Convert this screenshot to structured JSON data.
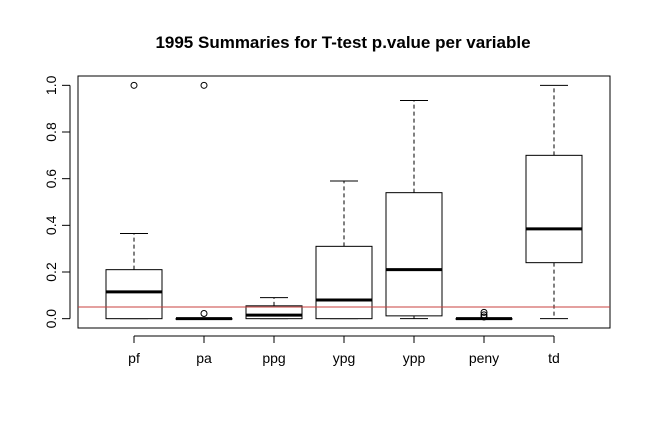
{
  "chart_data": {
    "type": "boxplot",
    "title": "1995  Summaries for T-test p.value per variable",
    "xlabel": "",
    "ylabel": "",
    "ylim": [
      -0.04,
      1.04
    ],
    "yticks": [
      "0.0",
      "0.2",
      "0.4",
      "0.6",
      "0.8",
      "1.0"
    ],
    "ytick_values": [
      0,
      0.2,
      0.4,
      0.6,
      0.8,
      1.0
    ],
    "grid": false,
    "reference_line": {
      "y": 0.05,
      "color": "#c8413f"
    },
    "categories": [
      "pf",
      "pa",
      "ppg",
      "ypg",
      "ypp",
      "peny",
      "td"
    ],
    "boxes": [
      {
        "name": "pf",
        "whisker_low": 0.0,
        "q1": 0.0,
        "median": 0.115,
        "q3": 0.21,
        "whisker_high": 0.365,
        "outliers": [
          1.0
        ]
      },
      {
        "name": "pa",
        "whisker_low": 0.0,
        "q1": 0.0,
        "median": 0.0,
        "q3": 0.0,
        "whisker_high": 0.0,
        "outliers": [
          1.0,
          0.022
        ]
      },
      {
        "name": "ppg",
        "whisker_low": 0.0,
        "q1": 0.0,
        "median": 0.015,
        "q3": 0.055,
        "whisker_high": 0.09,
        "outliers": []
      },
      {
        "name": "ypg",
        "whisker_low": 0.0,
        "q1": 0.0,
        "median": 0.08,
        "q3": 0.31,
        "whisker_high": 0.59,
        "outliers": []
      },
      {
        "name": "ypp",
        "whisker_low": 0.0,
        "q1": 0.012,
        "median": 0.21,
        "q3": 0.54,
        "whisker_high": 0.935,
        "outliers": []
      },
      {
        "name": "peny",
        "whisker_low": 0.0,
        "q1": 0.0,
        "median": 0.0,
        "q3": 0.0,
        "whisker_high": 0.0,
        "outliers": [
          0.027,
          0.016,
          0.007
        ]
      },
      {
        "name": "td",
        "whisker_low": 0.0,
        "q1": 0.24,
        "median": 0.385,
        "q3": 0.7,
        "whisker_high": 1.0,
        "outliers": []
      }
    ]
  }
}
